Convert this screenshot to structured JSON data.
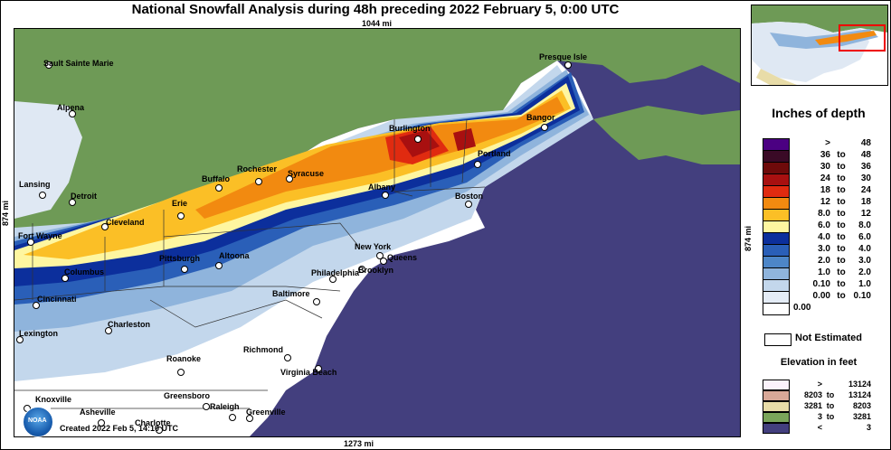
{
  "title": "National Snowfall Analysis during 48h preceding 2022 February 5, 0:00 UTC",
  "distances": {
    "top": "1044 mi",
    "bottom": "1273 mi",
    "left": "874 mi",
    "right": "874 mi"
  },
  "created": "Created 2022 Feb 5, 14:10 UTC",
  "logo_text": "NOAA",
  "cities": [
    {
      "name": "Sault Sainte Marie",
      "dark": false
    },
    {
      "name": "Alpena",
      "dark": false
    },
    {
      "name": "Lansing",
      "dark": false
    },
    {
      "name": "Detroit",
      "dark": false
    },
    {
      "name": "Fort Wayne",
      "dark": false
    },
    {
      "name": "Columbus",
      "dark": false
    },
    {
      "name": "Cincinnati",
      "dark": false
    },
    {
      "name": "Lexington",
      "dark": false
    },
    {
      "name": "Charleston",
      "dark": false
    },
    {
      "name": "Cleveland",
      "dark": false
    },
    {
      "name": "Erie",
      "dark": false
    },
    {
      "name": "Buffalo",
      "dark": false
    },
    {
      "name": "Rochester",
      "dark": false
    },
    {
      "name": "Syracuse",
      "dark": false
    },
    {
      "name": "Pittsburgh",
      "dark": false
    },
    {
      "name": "Altoona",
      "dark": false
    },
    {
      "name": "Albany",
      "dark": false
    },
    {
      "name": "Burlington",
      "dark": false
    },
    {
      "name": "Portland",
      "dark": false
    },
    {
      "name": "Bangor",
      "dark": false
    },
    {
      "name": "Presque Isle",
      "dark": false
    },
    {
      "name": "Boston",
      "dark": false
    },
    {
      "name": "New York",
      "dark": false
    },
    {
      "name": "Queens",
      "dark": false
    },
    {
      "name": "Brooklyn",
      "dark": false
    },
    {
      "name": "Philadelphia",
      "dark": false
    },
    {
      "name": "Baltimore",
      "dark": false
    },
    {
      "name": "Richmond",
      "dark": false
    },
    {
      "name": "Roanoke",
      "dark": false
    },
    {
      "name": "Virginia Beach",
      "dark": false
    },
    {
      "name": "Knoxville",
      "dark": false
    },
    {
      "name": "Greensboro",
      "dark": false
    },
    {
      "name": "Raleigh",
      "dark": false
    },
    {
      "name": "Greenville",
      "dark": false
    },
    {
      "name": "Asheville",
      "dark": false
    },
    {
      "name": "Charlotte",
      "dark": false
    }
  ],
  "legend": {
    "title": "Inches of depth",
    "rows": [
      {
        "a": ">",
        "to": "",
        "b": "48",
        "color": "#4b0082"
      },
      {
        "a": "36",
        "to": "to",
        "b": "48",
        "color": "#3a0a26"
      },
      {
        "a": "30",
        "to": "to",
        "b": "36",
        "color": "#6e0a0a"
      },
      {
        "a": "24",
        "to": "to",
        "b": "30",
        "color": "#a81010"
      },
      {
        "a": "18",
        "to": "to",
        "b": "24",
        "color": "#e02b10"
      },
      {
        "a": "12",
        "to": "to",
        "b": "18",
        "color": "#f28a10"
      },
      {
        "a": "8.0",
        "to": "to",
        "b": "12",
        "color": "#fbbf26"
      },
      {
        "a": "6.0",
        "to": "to",
        "b": "8.0",
        "color": "#fef6a0"
      },
      {
        "a": "4.0",
        "to": "to",
        "b": "6.0",
        "color": "#0c2f9c"
      },
      {
        "a": "3.0",
        "to": "to",
        "b": "4.0",
        "color": "#2a5fb8"
      },
      {
        "a": "2.0",
        "to": "to",
        "b": "3.0",
        "color": "#4d86c8"
      },
      {
        "a": "1.0",
        "to": "to",
        "b": "2.0",
        "color": "#8fb4dc"
      },
      {
        "a": "0.10",
        "to": "to",
        "b": "1.0",
        "color": "#c3d7ec"
      },
      {
        "a": "0.00",
        "to": "to",
        "b": "0.10",
        "color": "#e4ecf6"
      },
      {
        "a": "0.00",
        "to": "",
        "b": "",
        "color": "#ffffff"
      }
    ],
    "not_estimated": "Not Estimated"
  },
  "elevation": {
    "title": "Elevation in feet",
    "rows": [
      {
        "a": ">",
        "to": "",
        "b": "13124",
        "color": "#fbf2fb"
      },
      {
        "a": "8203",
        "to": "to",
        "b": "13124",
        "color": "#d8a898"
      },
      {
        "a": "3281",
        "to": "to",
        "b": "8203",
        "color": "#e8dca8"
      },
      {
        "a": "3",
        "to": "to",
        "b": "3281",
        "color": "#7aa55a"
      },
      {
        "a": "<",
        "to": "",
        "b": "3",
        "color": "#433f7e"
      }
    ]
  }
}
